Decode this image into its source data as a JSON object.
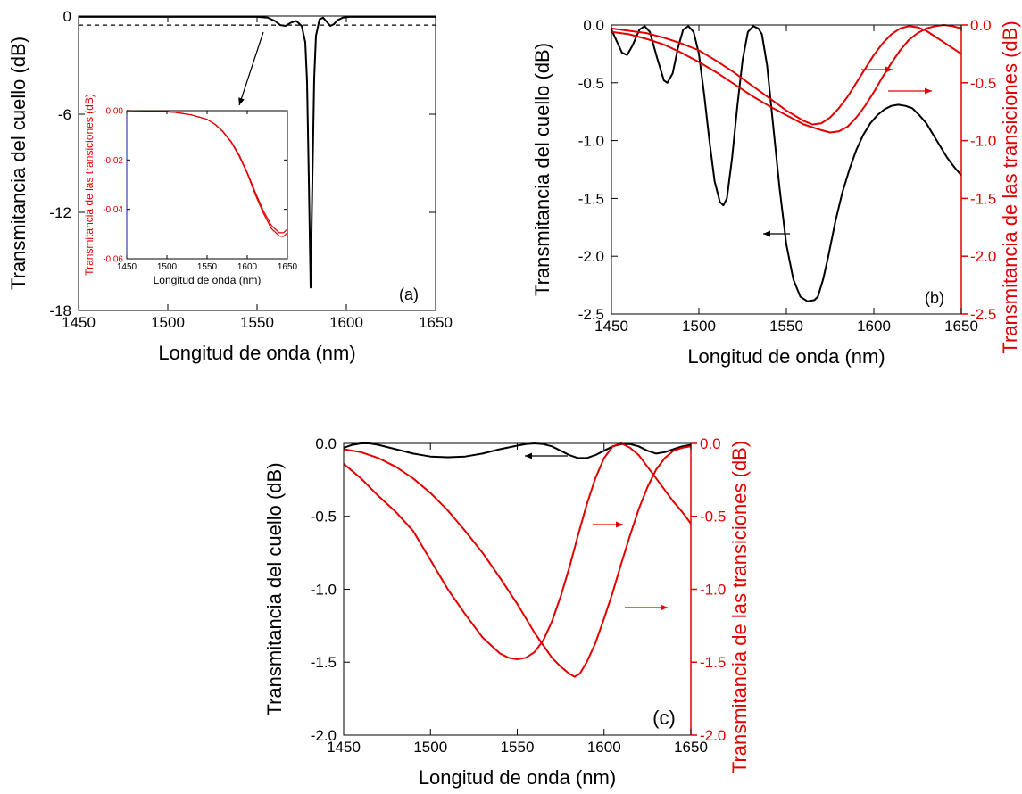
{
  "chart_data": [
    {
      "id": "a",
      "type": "line",
      "panel_label": "(a)",
      "xlabel": "Longitud de onda (nm)",
      "ylabel": "Transmitancia del cuello (dB)",
      "xlim": [
        1450,
        1650
      ],
      "ylim": [
        -18,
        0
      ],
      "xticks": [
        "1450",
        "1500",
        "1550",
        "1600",
        "1650"
      ],
      "xtick_values": [
        1450,
        1500,
        1550,
        1600,
        1650
      ],
      "yticks": [
        "0",
        "-6",
        "-12",
        "-18"
      ],
      "ytick_values": [
        0,
        -6,
        -12,
        -18
      ],
      "colors": {
        "neck": "#000000",
        "reference": "#000000"
      },
      "series": [
        {
          "axis": "left",
          "color": "#000000",
          "style": "solid",
          "x": [
            1450,
            1550,
            1556,
            1560,
            1563,
            1566,
            1569,
            1572,
            1575,
            1577,
            1578,
            1579,
            1580,
            1581,
            1582,
            1583,
            1585,
            1587,
            1589,
            1591,
            1593,
            1595,
            1598,
            1602,
            1650
          ],
          "y": [
            -0.05,
            -0.05,
            -0.1,
            -0.3,
            -0.55,
            -0.6,
            -0.4,
            -0.3,
            -0.6,
            -1.6,
            -4.0,
            -10.0,
            -16.6,
            -10.0,
            -3.8,
            -1.2,
            -0.2,
            -0.1,
            -0.35,
            -0.6,
            -0.5,
            -0.25,
            -0.1,
            -0.05,
            -0.05
          ]
        },
        {
          "axis": "left",
          "color": "#000000",
          "style": "dashed",
          "x": [
            1450,
            1650
          ],
          "y": [
            -0.55,
            -0.55
          ]
        }
      ],
      "inset": {
        "xlabel": "Longitud de onda (nm)",
        "ylabel": "Transmitancia de las transiciones (dB)",
        "xlim": [
          1450,
          1650
        ],
        "ylim": [
          -0.06,
          0
        ],
        "xticks": [
          "1450",
          "1500",
          "1550",
          "1600",
          "1650"
        ],
        "xtick_values": [
          1450,
          1500,
          1550,
          1600,
          1650
        ],
        "yticks": [
          "0.00",
          "-0.02",
          "-0.04",
          "-0.06"
        ],
        "ytick_values": [
          0,
          -0.02,
          -0.04,
          -0.06
        ],
        "series": [
          {
            "color": "#e00000",
            "x": [
              1450,
              1470,
              1490,
              1510,
              1530,
              1550,
              1560,
              1570,
              1580,
              1590,
              1600,
              1610,
              1620,
              1630,
              1640,
              1645,
              1650
            ],
            "y": [
              0,
              -0.0001,
              -0.0003,
              -0.0007,
              -0.0017,
              -0.0035,
              -0.0055,
              -0.0085,
              -0.0125,
              -0.018,
              -0.025,
              -0.033,
              -0.0405,
              -0.0465,
              -0.0495,
              -0.0495,
              -0.048
            ]
          },
          {
            "color": "#e00000",
            "x": [
              1450,
              1470,
              1490,
              1510,
              1530,
              1550,
              1560,
              1570,
              1580,
              1590,
              1600,
              1610,
              1620,
              1630,
              1640,
              1645,
              1650
            ],
            "y": [
              0,
              -0.0001,
              -0.0003,
              -0.0007,
              -0.0017,
              -0.0035,
              -0.0056,
              -0.0087,
              -0.0128,
              -0.0185,
              -0.0255,
              -0.034,
              -0.0415,
              -0.0478,
              -0.0508,
              -0.051,
              -0.0495
            ]
          }
        ]
      }
    },
    {
      "id": "b",
      "type": "line",
      "panel_label": "(b)",
      "xlabel": "Longitud de onda (nm)",
      "ylabel": "Transmitancia del cuello (dB)",
      "ylabel_right": "Transmitancia de las transiciones (dB)",
      "xlim": [
        1450,
        1650
      ],
      "ylim": [
        -2.5,
        0
      ],
      "ylim_right": [
        -2.5,
        0
      ],
      "xticks": [
        "1450",
        "1500",
        "1550",
        "1600",
        "1650"
      ],
      "xtick_values": [
        1450,
        1500,
        1550,
        1600,
        1650
      ],
      "yticks": [
        "0.0",
        "-0.5",
        "-1.0",
        "-1.5",
        "-2.0",
        "-2.5"
      ],
      "ytick_values": [
        0,
        -0.5,
        -1.0,
        -1.5,
        -2.0,
        -2.5
      ],
      "yticks_right": [
        "0.0",
        "-0.5",
        "-1.0",
        "-1.5",
        "-2.0",
        "-2.5"
      ],
      "colors": {
        "neck": "#000000",
        "transitions": "#e00000"
      },
      "series": [
        {
          "axis": "left",
          "color": "#000000",
          "style": "solid",
          "x": [
            1450,
            1453,
            1456,
            1459,
            1462,
            1466,
            1469,
            1472,
            1476,
            1480,
            1482,
            1485,
            1488,
            1491,
            1494,
            1497,
            1500,
            1503,
            1506,
            1509,
            1512,
            1514,
            1516,
            1519,
            1522,
            1525,
            1528,
            1531,
            1534,
            1536,
            1539,
            1542,
            1546,
            1550,
            1554,
            1558,
            1562,
            1566,
            1568,
            1571,
            1574,
            1578,
            1582,
            1586,
            1590,
            1594,
            1598,
            1602,
            1606,
            1610,
            1614,
            1618,
            1622,
            1626,
            1630,
            1634,
            1638,
            1642,
            1646,
            1650
          ],
          "y": [
            -0.04,
            -0.14,
            -0.24,
            -0.26,
            -0.18,
            -0.04,
            -0.01,
            -0.06,
            -0.28,
            -0.48,
            -0.5,
            -0.42,
            -0.2,
            -0.04,
            -0.01,
            -0.06,
            -0.25,
            -0.6,
            -1.0,
            -1.35,
            -1.53,
            -1.56,
            -1.5,
            -1.15,
            -0.7,
            -0.3,
            -0.06,
            -0.01,
            -0.03,
            -0.08,
            -0.35,
            -0.8,
            -1.4,
            -1.9,
            -2.2,
            -2.35,
            -2.39,
            -2.38,
            -2.35,
            -2.2,
            -2.0,
            -1.7,
            -1.45,
            -1.25,
            -1.08,
            -0.95,
            -0.85,
            -0.78,
            -0.73,
            -0.7,
            -0.69,
            -0.7,
            -0.72,
            -0.78,
            -0.85,
            -0.95,
            -1.05,
            -1.15,
            -1.23,
            -1.3
          ]
        },
        {
          "axis": "right",
          "color": "#e00000",
          "style": "solid",
          "x": [
            1450,
            1460,
            1470,
            1480,
            1490,
            1500,
            1510,
            1520,
            1530,
            1540,
            1550,
            1560,
            1565,
            1570,
            1575,
            1580,
            1585,
            1590,
            1595,
            1600,
            1605,
            1610,
            1615,
            1620,
            1625,
            1630,
            1635,
            1640,
            1645,
            1650
          ],
          "y": [
            -0.03,
            -0.05,
            -0.07,
            -0.11,
            -0.16,
            -0.22,
            -0.31,
            -0.41,
            -0.52,
            -0.63,
            -0.74,
            -0.83,
            -0.86,
            -0.85,
            -0.8,
            -0.72,
            -0.62,
            -0.5,
            -0.38,
            -0.26,
            -0.16,
            -0.08,
            -0.03,
            -0.01,
            -0.02,
            -0.05,
            -0.1,
            -0.15,
            -0.2,
            -0.25
          ]
        },
        {
          "axis": "right",
          "color": "#e00000",
          "style": "solid",
          "x": [
            1450,
            1460,
            1470,
            1480,
            1490,
            1500,
            1510,
            1520,
            1530,
            1540,
            1550,
            1560,
            1570,
            1575,
            1580,
            1585,
            1590,
            1595,
            1600,
            1605,
            1610,
            1615,
            1620,
            1625,
            1630,
            1635,
            1640,
            1645,
            1650
          ],
          "y": [
            -0.06,
            -0.08,
            -0.12,
            -0.17,
            -0.24,
            -0.32,
            -0.41,
            -0.51,
            -0.61,
            -0.7,
            -0.78,
            -0.86,
            -0.91,
            -0.93,
            -0.92,
            -0.88,
            -0.8,
            -0.7,
            -0.58,
            -0.45,
            -0.33,
            -0.22,
            -0.13,
            -0.07,
            -0.03,
            -0.01,
            0.0,
            -0.01,
            -0.03
          ]
        }
      ]
    },
    {
      "id": "c",
      "type": "line",
      "panel_label": "(c)",
      "xlabel": "Longitud de onda (nm)",
      "ylabel": "Transmitancia del cuello (dB)",
      "ylabel_right": "Transmitancia de las transiciones (dB)",
      "xlim": [
        1450,
        1650
      ],
      "ylim": [
        -2.0,
        0
      ],
      "ylim_right": [
        -2.0,
        0
      ],
      "xticks": [
        "1450",
        "1500",
        "1550",
        "1600",
        "1650"
      ],
      "xtick_values": [
        1450,
        1500,
        1550,
        1600,
        1650
      ],
      "yticks": [
        "0.0",
        "-0.5",
        "-1.0",
        "-1.5",
        "-2.0"
      ],
      "ytick_values": [
        0,
        -0.5,
        -1.0,
        -1.5,
        -2.0
      ],
      "yticks_right": [
        "0.0",
        "-0.5",
        "-1.0",
        "-1.5",
        "-2.0"
      ],
      "colors": {
        "neck": "#000000",
        "transitions": "#e00000"
      },
      "series": [
        {
          "axis": "left",
          "color": "#000000",
          "style": "solid",
          "x": [
            1450,
            1455,
            1460,
            1465,
            1470,
            1480,
            1490,
            1500,
            1510,
            1520,
            1530,
            1540,
            1550,
            1555,
            1560,
            1565,
            1570,
            1575,
            1580,
            1585,
            1590,
            1595,
            1600,
            1605,
            1610,
            1615,
            1620,
            1625,
            1630,
            1635,
            1640,
            1645,
            1650
          ],
          "y": [
            -0.03,
            -0.01,
            0.0,
            0.0,
            -0.01,
            -0.04,
            -0.07,
            -0.09,
            -0.095,
            -0.09,
            -0.07,
            -0.04,
            -0.015,
            -0.005,
            0.0,
            -0.005,
            -0.02,
            -0.05,
            -0.08,
            -0.1,
            -0.1,
            -0.08,
            -0.05,
            -0.02,
            -0.005,
            -0.005,
            -0.02,
            -0.05,
            -0.07,
            -0.06,
            -0.04,
            -0.02,
            -0.01
          ]
        },
        {
          "axis": "right",
          "color": "#e00000",
          "style": "solid",
          "x": [
            1450,
            1460,
            1470,
            1480,
            1490,
            1500,
            1510,
            1520,
            1530,
            1540,
            1545,
            1550,
            1555,
            1560,
            1565,
            1570,
            1575,
            1580,
            1585,
            1590,
            1595,
            1600,
            1605,
            1610,
            1615,
            1620,
            1625,
            1630,
            1635,
            1640,
            1645,
            1650
          ],
          "y": [
            -0.14,
            -0.24,
            -0.36,
            -0.47,
            -0.6,
            -0.8,
            -1.0,
            -1.17,
            -1.33,
            -1.44,
            -1.47,
            -1.48,
            -1.47,
            -1.43,
            -1.35,
            -1.22,
            -1.05,
            -0.85,
            -0.63,
            -0.42,
            -0.24,
            -0.1,
            -0.02,
            0.0,
            -0.03,
            -0.08,
            -0.16,
            -0.24,
            -0.32,
            -0.4,
            -0.47,
            -0.55
          ]
        },
        {
          "axis": "right",
          "color": "#e00000",
          "style": "solid",
          "x": [
            1450,
            1460,
            1470,
            1480,
            1490,
            1500,
            1510,
            1520,
            1530,
            1540,
            1550,
            1560,
            1570,
            1575,
            1580,
            1583,
            1586,
            1590,
            1595,
            1600,
            1605,
            1610,
            1615,
            1620,
            1625,
            1630,
            1635,
            1640,
            1645,
            1650
          ],
          "y": [
            -0.04,
            -0.06,
            -0.1,
            -0.16,
            -0.24,
            -0.34,
            -0.46,
            -0.6,
            -0.75,
            -0.92,
            -1.1,
            -1.3,
            -1.47,
            -1.53,
            -1.58,
            -1.6,
            -1.58,
            -1.5,
            -1.37,
            -1.2,
            -1.02,
            -0.82,
            -0.63,
            -0.45,
            -0.3,
            -0.18,
            -0.1,
            -0.05,
            -0.03,
            -0.02
          ]
        }
      ]
    }
  ]
}
